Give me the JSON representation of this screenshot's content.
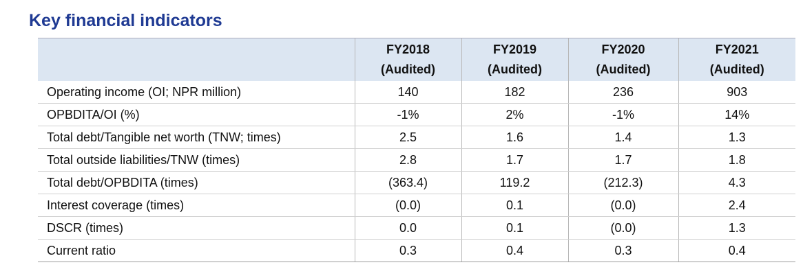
{
  "title": "Key financial indicators",
  "table": {
    "header": [
      [
        "FY2018",
        "(Audited)"
      ],
      [
        "FY2019",
        "(Audited)"
      ],
      [
        "FY2020",
        "(Audited)"
      ],
      [
        "FY2021",
        "(Audited)"
      ]
    ],
    "rows": [
      [
        "Operating income (OI; NPR million)",
        "140",
        "182",
        "236",
        "903"
      ],
      [
        "OPBDITA/OI (%)",
        "-1%",
        "2%",
        "-1%",
        "14%"
      ],
      [
        "Total debt/Tangible net worth (TNW; times)",
        "2.5",
        "1.6",
        "1.4",
        "1.3"
      ],
      [
        "Total outside liabilities/TNW (times)",
        "2.8",
        "1.7",
        "1.7",
        "1.8"
      ],
      [
        "Total debt/OPBDITA (times)",
        "(363.4)",
        "119.2",
        "(212.3)",
        "4.3"
      ],
      [
        "Interest coverage (times)",
        "(0.0)",
        "0.1",
        "(0.0)",
        "2.4"
      ],
      [
        "DSCR (times)",
        "0.0",
        "0.1",
        "(0.0)",
        "1.3"
      ],
      [
        "Current ratio",
        "0.3",
        "0.4",
        "0.3",
        "0.4"
      ]
    ]
  }
}
